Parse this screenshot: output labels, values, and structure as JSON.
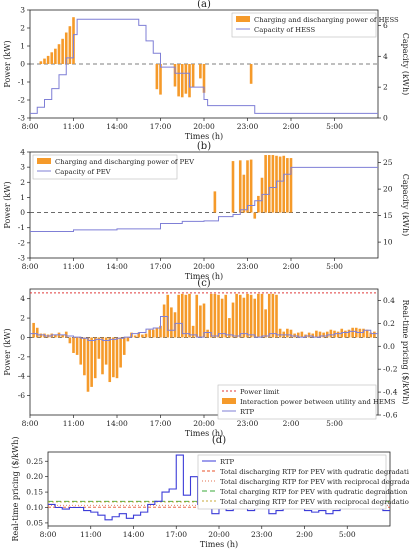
{
  "chart_data": [
    {
      "panel_label": "(a)",
      "type": "bar",
      "xlabel": "Times (h)",
      "ylabel_left": "Power (kW)",
      "ylabel_right": "Capacity (kWh)",
      "xticks": [
        "8:00",
        "11:00",
        "14:00",
        "17:00",
        "20:00",
        "23:00",
        "2:00",
        "5:00"
      ],
      "ylim_left": [
        -3,
        3
      ],
      "yticks_left": [
        "-3",
        "-2",
        "-1",
        "0",
        "1",
        "2",
        "3"
      ],
      "ylim_right": [
        0,
        7
      ],
      "yticks_right": [
        "0",
        "2",
        "4",
        "6"
      ],
      "legend": [
        "Charging and discharging power of HESS",
        "Capacity of HESS"
      ],
      "bars": {
        "name": "Charging and discharging power of HESS",
        "x": [
          8.75,
          9.0,
          9.25,
          9.5,
          9.75,
          10.0,
          10.25,
          10.5,
          10.75,
          11.0,
          16.75,
          17.0,
          18.0,
          18.25,
          18.5,
          18.75,
          19.0,
          19.25,
          19.75,
          20.0,
          23.25
        ],
        "values": [
          0.15,
          0.3,
          0.45,
          0.65,
          0.85,
          1.1,
          1.4,
          1.75,
          2.1,
          2.6,
          -1.4,
          -1.7,
          -1.25,
          -1.8,
          -1.85,
          -1.65,
          -1.85,
          -1.3,
          -0.8,
          -1.6,
          -1.1
        ]
      },
      "series": [
        {
          "name": "Capacity of HESS",
          "x": [
            8.0,
            8.5,
            9.0,
            9.5,
            10.0,
            10.5,
            11.0,
            11.25,
            15.0,
            15.5,
            16.0,
            16.5,
            17.0,
            18.0,
            19.0,
            20.0,
            20.25,
            23.0,
            23.5,
            32.0
          ],
          "values": [
            0.3,
            0.7,
            1.2,
            1.9,
            2.8,
            3.9,
            5.4,
            6.4,
            6.4,
            6.0,
            5.0,
            4.2,
            3.3,
            2.9,
            2.0,
            1.2,
            0.8,
            0.8,
            0.3,
            0.3
          ]
        }
      ]
    },
    {
      "panel_label": "(b)",
      "type": "bar",
      "xlabel": "Times (h)",
      "ylabel_left": "Power (kW)",
      "ylabel_right": "Capacity (kWh)",
      "xticks": [
        "8:00",
        "11:00",
        "14:00",
        "17:00",
        "20:00",
        "23:00",
        "2:00",
        "5:00"
      ],
      "ylim_left": [
        -3,
        4
      ],
      "yticks_left": [
        "-3",
        "-2",
        "-1",
        "0",
        "1",
        "2",
        "3",
        "4"
      ],
      "ylim_right": [
        7,
        27
      ],
      "yticks_right": [
        "10",
        "15",
        "20",
        "25"
      ],
      "legend": [
        "Charging and discharging power of PEV",
        "Capacity of PEV"
      ],
      "bars": {
        "name": "Charging and discharging power of PEV",
        "x": [
          20.75,
          22.0,
          22.5,
          22.75,
          23.0,
          23.25,
          23.5,
          23.75,
          24.0,
          24.25,
          24.5,
          24.75,
          25.0,
          25.25,
          25.5,
          25.75,
          26.0
        ],
        "values": [
          1.4,
          3.4,
          3.45,
          2.5,
          3.45,
          3.5,
          -0.4,
          1.1,
          2.3,
          3.8,
          3.8,
          3.8,
          3.75,
          3.7,
          3.75,
          3.6,
          3.6
        ]
      },
      "series": [
        {
          "name": "Capacity of PEV",
          "x": [
            8.0,
            11.0,
            14.0,
            17.0,
            18.5,
            20.0,
            21.0,
            22.0,
            22.5,
            23.0,
            23.5,
            24.0,
            24.5,
            25.0,
            25.5,
            26.0,
            32.0
          ],
          "values": [
            12.0,
            12.3,
            12.5,
            13.5,
            13.9,
            14.0,
            14.8,
            15.2,
            16.1,
            16.9,
            17.8,
            19.0,
            20.3,
            21.5,
            22.8,
            24.1,
            24.1
          ]
        }
      ]
    },
    {
      "panel_label": "(c)",
      "type": "bar",
      "xlabel": "Times (h)",
      "ylabel_left": "Power (kW)",
      "ylabel_right": "Real-time pricing ($/kWh)",
      "xticks": [
        "8:00",
        "11:00",
        "14:00",
        "17:00",
        "20:00",
        "23:00",
        "2:00",
        "5:00"
      ],
      "ylim_left": [
        -8,
        5
      ],
      "yticks_left": [
        "-6",
        "-4",
        "-2",
        "0",
        "2",
        "4"
      ],
      "ylim_right": [
        -0.6,
        0.5
      ],
      "yticks_right": [
        "-0.6",
        "-0.4",
        "-0.2",
        "0.0",
        "0.2",
        "0.4"
      ],
      "legend": [
        "Power limit",
        "Interaction power between utility and HEMS",
        "RTP"
      ],
      "power_limit": 4.6,
      "bars": {
        "name": "Interaction power between utility and HEMS",
        "x": [
          8.25,
          8.5,
          8.75,
          9.0,
          9.25,
          9.5,
          9.75,
          10.0,
          10.25,
          10.5,
          10.75,
          11.0,
          11.25,
          11.5,
          11.75,
          12.0,
          12.25,
          12.5,
          12.75,
          13.0,
          13.25,
          13.5,
          13.75,
          14.0,
          14.25,
          14.5,
          14.75,
          15.0,
          15.25,
          15.5,
          15.75,
          16.0,
          16.25,
          16.5,
          16.75,
          17.0,
          17.25,
          17.5,
          17.75,
          18.0,
          18.25,
          18.5,
          18.75,
          19.0,
          19.25,
          19.5,
          19.75,
          20.0,
          20.25,
          20.5,
          20.75,
          21.0,
          21.25,
          21.5,
          21.75,
          22.0,
          22.25,
          22.5,
          22.75,
          23.0,
          23.25,
          23.5,
          23.75,
          24.0,
          24.25,
          24.5,
          24.75,
          25.0,
          25.25,
          25.5,
          25.75,
          26.0,
          26.25,
          26.5,
          26.75,
          27.0,
          27.25,
          27.5,
          27.75,
          28.0,
          28.25,
          28.5,
          28.75,
          29.0,
          29.25,
          29.5,
          29.75,
          30.0,
          30.25,
          30.5,
          30.75,
          31.0,
          31.25,
          31.5,
          31.75
        ],
        "values": [
          1.5,
          1.0,
          0.4,
          0.4,
          0.3,
          0.4,
          0.3,
          0.5,
          0.3,
          0.6,
          -0.6,
          -1.6,
          -1.8,
          -2.8,
          -3.9,
          -5.6,
          -5.1,
          -4.2,
          -2.2,
          -3.8,
          -2.8,
          -4.6,
          -4.1,
          -4.2,
          -3.1,
          -1.8,
          -0.4,
          0.5,
          0.2,
          0.5,
          0.3,
          0.4,
          0.8,
          0.8,
          1.0,
          1.2,
          3.4,
          4.4,
          3.1,
          2.6,
          4.4,
          4.5,
          4.4,
          4.5,
          1.2,
          4.4,
          3.3,
          3.5,
          0.8,
          4.5,
          4.5,
          4.4,
          4.0,
          4.4,
          2.0,
          3.6,
          4.5,
          4.4,
          4.1,
          4.5,
          4.4,
          4.0,
          4.5,
          4.5,
          2.9,
          4.5,
          4.5,
          4.4,
          0.9,
          0.6,
          0.9,
          0.8,
          0.4,
          0.5,
          0.6,
          0.3,
          0.5,
          0.4,
          0.7,
          0.6,
          0.5,
          0.6,
          0.8,
          0.7,
          0.6,
          0.9,
          0.7,
          0.8,
          1.0,
          1.0,
          0.9,
          0.9,
          0.8,
          0.5,
          0.6
        ]
      },
      "series": [
        {
          "name": "RTP",
          "x": [
            8.0,
            8.5,
            9.0,
            9.5,
            10.0,
            10.5,
            11.0,
            11.5,
            12.0,
            12.5,
            13.0,
            13.5,
            14.0,
            14.5,
            15.0,
            15.5,
            16.0,
            16.5,
            17.0,
            17.5,
            18.0,
            18.5,
            19.0,
            19.5,
            20.0,
            20.5,
            21.0,
            21.5,
            22.0,
            22.5,
            23.0,
            23.5,
            24.0,
            24.5,
            25.0,
            25.5,
            26.0,
            26.5,
            27.0,
            27.5,
            28.0,
            28.5,
            29.0,
            29.5,
            30.0,
            30.5,
            31.0,
            31.5
          ],
          "values": [
            0.11,
            0.1,
            0.09,
            0.1,
            0.1,
            0.09,
            0.08,
            0.07,
            0.05,
            0.06,
            0.05,
            0.06,
            0.07,
            0.08,
            0.11,
            0.12,
            0.15,
            0.16,
            0.26,
            0.14,
            0.2,
            0.11,
            0.1,
            0.08,
            0.12,
            0.09,
            0.11,
            0.1,
            0.09,
            0.11,
            0.1,
            0.08,
            0.09,
            0.11,
            0.1,
            0.1,
            0.09,
            0.08,
            0.09,
            0.08,
            0.09,
            0.1,
            0.11,
            0.12,
            0.13,
            0.12,
            0.14,
            0.11
          ]
        }
      ]
    },
    {
      "panel_label": "(d)",
      "type": "line",
      "xlabel": "Times (h)",
      "ylabel": "Real-time pricing ($/kWh)",
      "xticks": [
        "8:00",
        "11:00",
        "14:00",
        "17:00",
        "20:00",
        "23:00",
        "2:00",
        "5:00"
      ],
      "ylim": [
        0.04,
        0.28
      ],
      "yticks": [
        "0.05",
        "0.10",
        "0.15",
        "0.20",
        "0.25"
      ],
      "legend": [
        "RTP",
        "Total discharging RTP for PEV with qudratic degradation cost",
        "Total discharging RTP for PEV with reciprocal degradation cost",
        "Total charging RTP for PEV with qudratic degradation RTP",
        "Total charging RTP for PEV with reciprocal degradation cost"
      ],
      "levels": [
        0.101,
        0.107,
        0.12,
        0.118
      ],
      "series": [
        {
          "name": "RTP",
          "x": [
            8.0,
            8.5,
            9.0,
            9.5,
            10.0,
            10.5,
            11.0,
            11.5,
            12.0,
            12.5,
            13.0,
            13.5,
            14.0,
            14.5,
            15.0,
            15.5,
            16.0,
            16.5,
            17.0,
            17.5,
            18.0,
            18.5,
            19.0,
            19.5,
            20.0,
            20.5,
            21.0,
            21.5,
            22.0,
            22.5,
            23.0,
            23.5,
            24.0,
            24.5,
            25.0,
            25.5,
            26.0,
            26.5,
            27.0,
            27.5,
            28.0,
            28.5,
            29.0,
            29.5,
            30.0,
            30.5,
            31.0,
            31.5
          ],
          "values": [
            0.11,
            0.1,
            0.095,
            0.1,
            0.1,
            0.09,
            0.085,
            0.075,
            0.06,
            0.07,
            0.08,
            0.065,
            0.075,
            0.085,
            0.11,
            0.12,
            0.15,
            0.16,
            0.27,
            0.14,
            0.2,
            0.11,
            0.1,
            0.08,
            0.12,
            0.09,
            0.11,
            0.1,
            0.09,
            0.11,
            0.1,
            0.08,
            0.09,
            0.11,
            0.1,
            0.1,
            0.09,
            0.085,
            0.09,
            0.08,
            0.09,
            0.1,
            0.11,
            0.12,
            0.13,
            0.12,
            0.14,
            0.09
          ]
        }
      ]
    }
  ],
  "colors": {
    "bar": "#f59a2a",
    "line": "#7f7fd6",
    "rtp_d": "#3b3bd8",
    "limit": "#e03a3a",
    "levels": [
      "#e8502a",
      "#e07050",
      "#3aa83a",
      "#c9a83a"
    ]
  }
}
